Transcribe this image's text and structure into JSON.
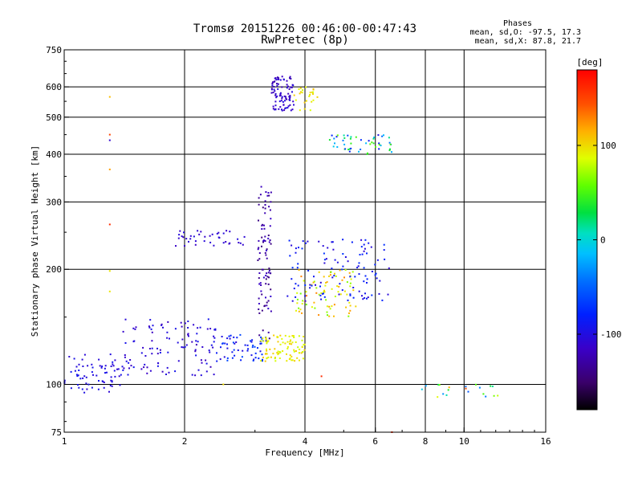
{
  "title": {
    "line1": "Tromsø 20151226 00:46:00-00:47:43",
    "line2": "RwPretec (8p)"
  },
  "stats": {
    "header": "Phases",
    "line_o": "mean, sd,O: -97.5, 17.3",
    "line_x": "mean, sd,X:  87.8, 21.7"
  },
  "colorbar": {
    "unit_label": "[deg]",
    "ticks": [
      {
        "value": 100,
        "label": "100"
      },
      {
        "value": 0,
        "label": "0"
      },
      {
        "value": -100,
        "label": "-100"
      }
    ],
    "range": [
      -180,
      180
    ]
  },
  "chart_data": {
    "type": "scatter",
    "xlabel": "Frequency [MHz]",
    "ylabel": "Stationary phase Virtual Height [km]",
    "xscale": "log",
    "yscale": "log",
    "xlim": [
      1,
      16
    ],
    "ylim": [
      75,
      750
    ],
    "xticks": [
      {
        "value": 1,
        "label": "1",
        "grid": false
      },
      {
        "value": 2,
        "label": "2",
        "grid": true
      },
      {
        "value": 4,
        "label": "4",
        "grid": true
      },
      {
        "value": 6,
        "label": "6",
        "grid": true
      },
      {
        "value": 8,
        "label": "8",
        "grid": true
      },
      {
        "value": 10,
        "label": "10",
        "grid": true
      },
      {
        "value": 16,
        "label": "16",
        "grid": false
      }
    ],
    "yticks": [
      {
        "value": 75,
        "label": "75",
        "grid": false
      },
      {
        "value": 100,
        "label": "100",
        "grid": true
      },
      {
        "value": 200,
        "label": "200",
        "grid": true
      },
      {
        "value": 300,
        "label": "300",
        "grid": true
      },
      {
        "value": 400,
        "label": "400",
        "grid": true
      },
      {
        "value": 500,
        "label": "500",
        "grid": true
      },
      {
        "value": 600,
        "label": "600",
        "grid": true
      },
      {
        "value": 750,
        "label": "750",
        "grid": false
      }
    ],
    "grid": true,
    "color_encoding": "phase (deg)",
    "clusters": [
      {
        "desc": "low E-region noise band",
        "f_range": [
          1.0,
          1.4
        ],
        "h_range": [
          95,
          120
        ],
        "phase_range": [
          -110,
          -90
        ],
        "count": 70
      },
      {
        "desc": "ascending spread trace",
        "f_range": [
          1.4,
          2.4
        ],
        "h_range": [
          105,
          150
        ],
        "phase_range": [
          -120,
          -90
        ],
        "count": 110
      },
      {
        "desc": "trace into steep rise",
        "f_range": [
          2.4,
          3.2
        ],
        "h_range": [
          115,
          135
        ],
        "phase_range": [
          -110,
          -60
        ],
        "count": 60
      },
      {
        "desc": "F trace near 240km",
        "f_range": [
          1.9,
          2.9
        ],
        "h_range": [
          230,
          255
        ],
        "phase_range": [
          -115,
          -100
        ],
        "count": 40
      },
      {
        "desc": "vertical steep column",
        "f_range": [
          3.05,
          3.3
        ],
        "h_range": [
          130,
          330
        ],
        "phase_range": [
          -145,
          -110
        ],
        "count": 90
      },
      {
        "desc": "high spread echoes",
        "f_range": [
          3.3,
          3.75
        ],
        "h_range": [
          520,
          640
        ],
        "phase_range": [
          -125,
          -100
        ],
        "count": 90
      },
      {
        "desc": "high echoes yellow",
        "f_range": [
          3.75,
          4.3
        ],
        "h_range": [
          520,
          600
        ],
        "phase_range": [
          80,
          110
        ],
        "count": 25
      },
      {
        "desc": "X-mode low trace",
        "f_range": [
          3.1,
          4.0
        ],
        "h_range": [
          115,
          135
        ],
        "phase_range": [
          80,
          110
        ],
        "count": 90
      },
      {
        "desc": "X-mode rise",
        "f_range": [
          3.8,
          5.4
        ],
        "h_range": [
          150,
          200
        ],
        "phase_range": [
          60,
          130
        ],
        "count": 80
      },
      {
        "desc": "O-mode F2 trace",
        "f_range": [
          3.6,
          6.5
        ],
        "h_range": [
          165,
          240
        ],
        "phase_range": [
          -110,
          -70
        ],
        "count": 110
      },
      {
        "desc": "upper right clump",
        "f_range": [
          4.6,
          6.6
        ],
        "h_range": [
          400,
          450
        ],
        "phase_range": [
          -100,
          60
        ],
        "count": 50
      },
      {
        "desc": "sporadic low-right",
        "f_range": [
          7.5,
          12.5
        ],
        "h_range": [
          92,
          100
        ],
        "phase_range": [
          -60,
          160
        ],
        "count": 20
      }
    ],
    "isolated_points": [
      {
        "f": 1.3,
        "h": 565,
        "phase": 110
      },
      {
        "f": 1.3,
        "h": 450,
        "phase": 150
      },
      {
        "f": 1.3,
        "h": 435,
        "phase": -110
      },
      {
        "f": 1.3,
        "h": 365,
        "phase": 120
      },
      {
        "f": 1.3,
        "h": 262,
        "phase": 160
      },
      {
        "f": 1.3,
        "h": 198,
        "phase": 95
      },
      {
        "f": 1.3,
        "h": 175,
        "phase": 95
      },
      {
        "f": 2.5,
        "h": 100,
        "phase": 100
      },
      {
        "f": 6.6,
        "h": 75,
        "phase": 160
      },
      {
        "f": 4.4,
        "h": 105,
        "phase": 160
      }
    ]
  }
}
